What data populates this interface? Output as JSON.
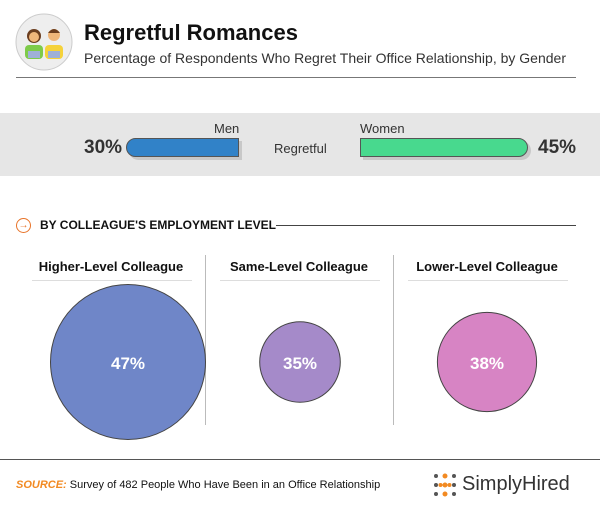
{
  "header": {
    "title": "Regretful Romances",
    "subtitle": "Percentage of Respondents Who Regret Their Office Relationship, by Gender"
  },
  "chart_data": [
    {
      "type": "bar",
      "title": "Regretful",
      "categories": [
        "Men",
        "Women"
      ],
      "values": [
        30,
        45
      ],
      "labels": [
        "30%",
        "45%"
      ],
      "colors": [
        "#3182c8",
        "#48d98e"
      ]
    },
    {
      "type": "bubble",
      "title": "BY COLLEAGUE'S EMPLOYMENT LEVEL",
      "categories": [
        "Higher-Level Colleague",
        "Same-Level Colleague",
        "Lower-Level Colleague"
      ],
      "values": [
        47,
        35,
        38
      ],
      "labels": [
        "47%",
        "35%",
        "38%"
      ],
      "colors": [
        "#6f86c8",
        "#a58ac9",
        "#d784c4"
      ]
    }
  ],
  "footer": {
    "source_key": "SOURCE:",
    "source_text": "Survey of 482 People Who Have Been in an Office Relationship",
    "brand": "SimplyHired"
  }
}
